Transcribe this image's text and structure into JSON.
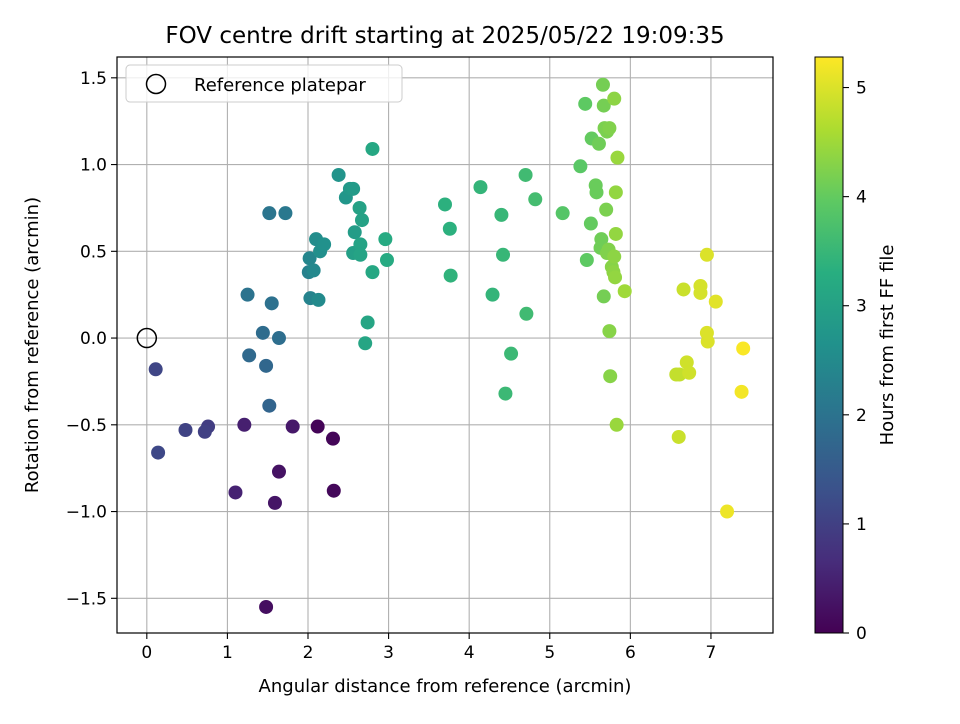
{
  "chart_data": {
    "type": "scatter",
    "title": "FOV centre drift starting at 2025/05/22 19:09:35",
    "xlabel": "Angular distance from reference (arcmin)",
    "ylabel": "Rotation from reference (arcmin)",
    "xlim": [
      -0.37,
      7.77
    ],
    "ylim": [
      -1.7,
      1.62
    ],
    "x_ticks": [
      0,
      1,
      2,
      3,
      4,
      5,
      6,
      7
    ],
    "x_tick_labels": [
      "0",
      "1",
      "2",
      "3",
      "4",
      "5",
      "6",
      "7"
    ],
    "y_ticks": [
      -1.5,
      -1.0,
      -0.5,
      0.0,
      0.5,
      1.0,
      1.5
    ],
    "y_tick_labels": [
      "−1.5",
      "−1.0",
      "−0.5",
      "0.0",
      "0.5",
      "1.0",
      "1.5"
    ],
    "grid": true,
    "legend": {
      "position": "top-left",
      "entries": [
        {
          "label": "Reference platepar",
          "marker": "open-circle"
        }
      ]
    },
    "reference_point": {
      "x": 0.0,
      "y": 0.0
    },
    "colorbar": {
      "label": "Hours from first FF file",
      "colormap": "viridis",
      "range": [
        0,
        5.28
      ],
      "ticks": [
        0,
        1,
        2,
        3,
        4,
        5
      ],
      "tick_labels": [
        "0",
        "1",
        "2",
        "3",
        "4",
        "5"
      ]
    },
    "points": [
      {
        "x": 2.12,
        "y": -0.51,
        "c": 0.05
      },
      {
        "x": 2.31,
        "y": -0.58,
        "c": 0.07
      },
      {
        "x": 2.32,
        "y": -0.88,
        "c": 0.1
      },
      {
        "x": 1.48,
        "y": -1.55,
        "c": 0.2
      },
      {
        "x": 1.64,
        "y": -0.77,
        "c": 0.25
      },
      {
        "x": 1.59,
        "y": -0.95,
        "c": 0.3
      },
      {
        "x": 1.81,
        "y": -0.51,
        "c": 0.35
      },
      {
        "x": 1.21,
        "y": -0.5,
        "c": 0.45
      },
      {
        "x": 1.1,
        "y": -0.89,
        "c": 0.5
      },
      {
        "x": 0.76,
        "y": -0.51,
        "c": 0.95
      },
      {
        "x": 0.72,
        "y": -0.54,
        "c": 1.0
      },
      {
        "x": 0.48,
        "y": -0.53,
        "c": 1.05
      },
      {
        "x": 0.11,
        "y": -0.18,
        "c": 1.1
      },
      {
        "x": 0.14,
        "y": -0.66,
        "c": 1.15
      },
      {
        "x": 1.52,
        "y": -0.39,
        "c": 1.7
      },
      {
        "x": 1.48,
        "y": -0.16,
        "c": 1.75
      },
      {
        "x": 1.27,
        "y": -0.1,
        "c": 1.8
      },
      {
        "x": 1.44,
        "y": 0.03,
        "c": 1.85
      },
      {
        "x": 1.64,
        "y": 0.0,
        "c": 1.9
      },
      {
        "x": 1.55,
        "y": 0.2,
        "c": 1.95
      },
      {
        "x": 1.25,
        "y": 0.25,
        "c": 2.0
      },
      {
        "x": 1.52,
        "y": 0.72,
        "c": 2.05
      },
      {
        "x": 1.72,
        "y": 0.72,
        "c": 2.1
      },
      {
        "x": 2.01,
        "y": 0.38,
        "c": 2.3
      },
      {
        "x": 2.03,
        "y": 0.23,
        "c": 2.35
      },
      {
        "x": 2.02,
        "y": 0.46,
        "c": 2.4
      },
      {
        "x": 2.07,
        "y": 0.39,
        "c": 2.45
      },
      {
        "x": 2.13,
        "y": 0.22,
        "c": 2.5
      },
      {
        "x": 2.1,
        "y": 0.57,
        "c": 2.55
      },
      {
        "x": 2.15,
        "y": 0.5,
        "c": 2.6
      },
      {
        "x": 2.2,
        "y": 0.54,
        "c": 2.65
      },
      {
        "x": 2.38,
        "y": 0.94,
        "c": 2.7
      },
      {
        "x": 2.47,
        "y": 0.81,
        "c": 2.75
      },
      {
        "x": 2.52,
        "y": 0.86,
        "c": 2.8
      },
      {
        "x": 2.56,
        "y": 0.86,
        "c": 2.85
      },
      {
        "x": 2.58,
        "y": 0.61,
        "c": 2.9
      },
      {
        "x": 2.56,
        "y": 0.49,
        "c": 2.95
      },
      {
        "x": 2.64,
        "y": 0.75,
        "c": 3.0
      },
      {
        "x": 2.67,
        "y": 0.68,
        "c": 3.0
      },
      {
        "x": 2.65,
        "y": 0.54,
        "c": 3.05
      },
      {
        "x": 2.65,
        "y": 0.48,
        "c": 3.05
      },
      {
        "x": 2.74,
        "y": 0.09,
        "c": 3.1
      },
      {
        "x": 2.71,
        "y": -0.03,
        "c": 3.1
      },
      {
        "x": 2.8,
        "y": 1.09,
        "c": 3.15
      },
      {
        "x": 2.8,
        "y": 0.38,
        "c": 3.15
      },
      {
        "x": 2.96,
        "y": 0.57,
        "c": 3.2
      },
      {
        "x": 2.98,
        "y": 0.45,
        "c": 3.2
      },
      {
        "x": 3.7,
        "y": 0.77,
        "c": 3.35
      },
      {
        "x": 3.76,
        "y": 0.63,
        "c": 3.35
      },
      {
        "x": 3.77,
        "y": 0.36,
        "c": 3.4
      },
      {
        "x": 4.14,
        "y": 0.87,
        "c": 3.45
      },
      {
        "x": 4.29,
        "y": 0.25,
        "c": 3.45
      },
      {
        "x": 4.4,
        "y": 0.71,
        "c": 3.5
      },
      {
        "x": 4.42,
        "y": 0.48,
        "c": 3.5
      },
      {
        "x": 4.45,
        "y": -0.32,
        "c": 3.55
      },
      {
        "x": 4.52,
        "y": -0.09,
        "c": 3.55
      },
      {
        "x": 4.7,
        "y": 0.94,
        "c": 3.6
      },
      {
        "x": 4.71,
        "y": 0.14,
        "c": 3.6
      },
      {
        "x": 4.82,
        "y": 0.8,
        "c": 3.65
      },
      {
        "x": 5.16,
        "y": 0.72,
        "c": 3.85
      },
      {
        "x": 5.38,
        "y": 0.99,
        "c": 3.9
      },
      {
        "x": 5.44,
        "y": 1.35,
        "c": 3.95
      },
      {
        "x": 5.46,
        "y": 0.45,
        "c": 3.95
      },
      {
        "x": 5.51,
        "y": 0.66,
        "c": 4.0
      },
      {
        "x": 5.52,
        "y": 1.15,
        "c": 4.0
      },
      {
        "x": 5.57,
        "y": 0.88,
        "c": 4.05
      },
      {
        "x": 5.58,
        "y": 0.84,
        "c": 4.05
      },
      {
        "x": 5.61,
        "y": 1.12,
        "c": 4.1
      },
      {
        "x": 5.63,
        "y": 0.52,
        "c": 4.1
      },
      {
        "x": 5.64,
        "y": 0.57,
        "c": 4.1
      },
      {
        "x": 5.66,
        "y": 1.46,
        "c": 4.15
      },
      {
        "x": 5.67,
        "y": 1.34,
        "c": 4.15
      },
      {
        "x": 5.67,
        "y": 0.24,
        "c": 4.15
      },
      {
        "x": 5.68,
        "y": 1.21,
        "c": 4.2
      },
      {
        "x": 5.7,
        "y": 0.74,
        "c": 4.2
      },
      {
        "x": 5.71,
        "y": 1.19,
        "c": 4.2
      },
      {
        "x": 5.71,
        "y": 0.49,
        "c": 4.25
      },
      {
        "x": 5.73,
        "y": 0.51,
        "c": 4.25
      },
      {
        "x": 5.74,
        "y": 1.21,
        "c": 4.25
      },
      {
        "x": 5.74,
        "y": 0.04,
        "c": 4.3
      },
      {
        "x": 5.75,
        "y": -0.22,
        "c": 4.3
      },
      {
        "x": 5.77,
        "y": 0.41,
        "c": 4.3
      },
      {
        "x": 5.79,
        "y": 0.38,
        "c": 4.35
      },
      {
        "x": 5.8,
        "y": 0.47,
        "c": 4.35
      },
      {
        "x": 5.8,
        "y": 1.38,
        "c": 4.35
      },
      {
        "x": 5.81,
        "y": 0.35,
        "c": 4.4
      },
      {
        "x": 5.82,
        "y": 0.6,
        "c": 4.4
      },
      {
        "x": 5.82,
        "y": 0.84,
        "c": 4.4
      },
      {
        "x": 5.83,
        "y": -0.5,
        "c": 4.45
      },
      {
        "x": 5.84,
        "y": 1.04,
        "c": 4.45
      },
      {
        "x": 5.93,
        "y": 0.27,
        "c": 4.5
      },
      {
        "x": 6.57,
        "y": -0.21,
        "c": 4.8
      },
      {
        "x": 6.61,
        "y": -0.21,
        "c": 4.8
      },
      {
        "x": 6.6,
        "y": -0.57,
        "c": 4.85
      },
      {
        "x": 6.66,
        "y": 0.28,
        "c": 4.85
      },
      {
        "x": 6.7,
        "y": -0.14,
        "c": 4.9
      },
      {
        "x": 6.73,
        "y": -0.2,
        "c": 4.9
      },
      {
        "x": 6.87,
        "y": 0.3,
        "c": 4.95
      },
      {
        "x": 6.87,
        "y": 0.26,
        "c": 4.95
      },
      {
        "x": 6.95,
        "y": 0.48,
        "c": 5.0
      },
      {
        "x": 6.95,
        "y": 0.03,
        "c": 5.0
      },
      {
        "x": 6.96,
        "y": -0.02,
        "c": 5.0
      },
      {
        "x": 7.06,
        "y": 0.21,
        "c": 5.05
      },
      {
        "x": 7.2,
        "y": -1.0,
        "c": 5.15
      },
      {
        "x": 7.38,
        "y": -0.31,
        "c": 5.2
      },
      {
        "x": 7.4,
        "y": -0.06,
        "c": 5.25
      }
    ]
  }
}
